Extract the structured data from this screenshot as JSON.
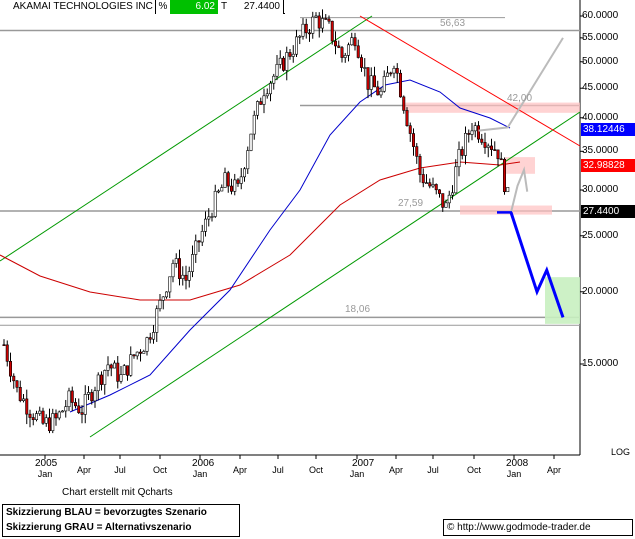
{
  "header": {
    "name": "AKAMAI TECHNOLOGIES INC",
    "pct_symbol": "%",
    "change": "6.02",
    "t_symbol": "T",
    "last": "27.4400"
  },
  "chart_data": {
    "type": "candlestick",
    "scale": "log",
    "grid": false,
    "ylim": [
      11,
      63
    ],
    "y_ticks": [
      "60.0000",
      "55.0000",
      "50.0000",
      "45.0000",
      "40.0000",
      "35.0000",
      "30.0000",
      "25.0000",
      "20.0000",
      "15.0000"
    ],
    "x_month_labels": [
      "Jan",
      "Apr",
      "Jul",
      "Oct",
      "Jan",
      "Apr",
      "Jul",
      "Oct",
      "Jan",
      "Apr",
      "Jul",
      "Oct",
      "Jan",
      "Apr"
    ],
    "x_year_labels": [
      "2005",
      "2006",
      "2007",
      "2008"
    ],
    "value_tags": [
      {
        "value": "38.12446",
        "color": "#0000ff"
      },
      {
        "value": "32.98828",
        "color": "#ff0000"
      },
      {
        "value": "27.4400",
        "color": "#000000"
      }
    ],
    "levels": [
      {
        "label": "56,63",
        "value": 56.63
      },
      {
        "label": "42,00",
        "value": 42.0
      },
      {
        "label": "27,59",
        "value": 27.59
      },
      {
        "label": "18,06",
        "value": 18.06
      }
    ],
    "moving_average_fast": "MA 38.12446 (blue)",
    "moving_average_slow": "MA 32.98828 (red)",
    "price_path": [
      [
        0,
        16.2
      ],
      [
        4,
        13.5
      ],
      [
        8,
        12.5
      ],
      [
        12,
        11.8
      ],
      [
        16,
        12.0
      ],
      [
        20,
        13.0
      ],
      [
        24,
        12.5
      ],
      [
        28,
        13.8
      ],
      [
        32,
        15.0
      ],
      [
        36,
        14.2
      ],
      [
        40,
        15.5
      ],
      [
        44,
        16.5
      ],
      [
        48,
        19.0
      ],
      [
        52,
        22.5
      ],
      [
        56,
        21.0
      ],
      [
        60,
        24.5
      ],
      [
        64,
        28.0
      ],
      [
        68,
        31.0
      ],
      [
        72,
        30.0
      ],
      [
        76,
        38.0
      ],
      [
        80,
        45.0
      ],
      [
        84,
        48.0
      ],
      [
        88,
        52.0
      ],
      [
        92,
        56.0
      ],
      [
        96,
        59.5
      ],
      [
        100,
        57.0
      ],
      [
        104,
        51.0
      ],
      [
        108,
        55.5
      ],
      [
        112,
        46.0
      ],
      [
        116,
        44.0
      ],
      [
        120,
        50.5
      ],
      [
        124,
        40.0
      ],
      [
        128,
        32.0
      ],
      [
        132,
        30.0
      ],
      [
        136,
        28.0
      ],
      [
        140,
        34.0
      ],
      [
        144,
        39.0
      ],
      [
        148,
        37.0
      ],
      [
        152,
        35.0
      ],
      [
        156,
        27.44
      ]
    ],
    "scenario_blue": [
      [
        156,
        27.44
      ],
      [
        164,
        20.0
      ],
      [
        167,
        21.8
      ],
      [
        172,
        18.06
      ]
    ],
    "scenario_grey": [
      [
        156,
        27.44
      ],
      [
        158,
        30.5
      ],
      [
        160,
        32.5
      ],
      [
        161,
        29.8
      ]
    ],
    "scenario_grey_upper": [
      [
        146,
        38.0
      ],
      [
        155,
        38.5
      ],
      [
        172,
        55.0
      ]
    ]
  },
  "footer": {
    "credit": "Chart erstellt mit Qcharts",
    "legend_line1": "Skizzierung BLAU = bevorzugtes Szenario",
    "legend_line2": "Skizzierung GRAU = Alternativszenario",
    "site": "© http://www.godmode-trader.de",
    "scale_label": "LOG"
  }
}
